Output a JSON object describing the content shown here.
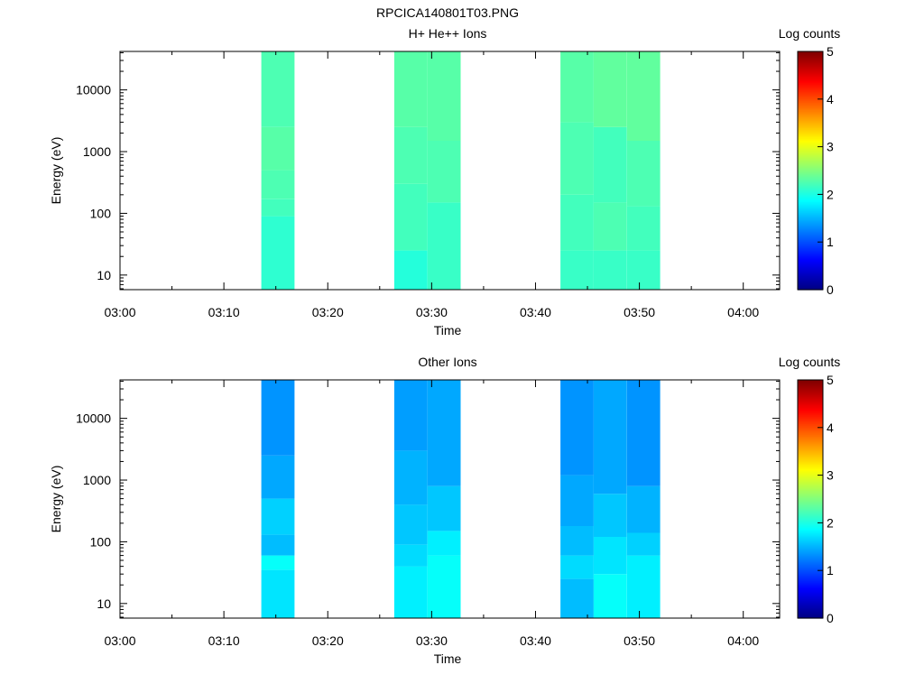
{
  "figure_title": "RPCICA140801T03.PNG",
  "colorbar": {
    "label": "Log counts",
    "ticks": [
      "0",
      "1",
      "2",
      "3",
      "4",
      "5"
    ],
    "range": [
      0,
      5
    ],
    "colormap": "jet"
  },
  "x_ticks": [
    "03:00",
    "03:10",
    "03:20",
    "03:30",
    "03:40",
    "03:50",
    "04:00"
  ],
  "x_tick_minutes": [
    0,
    10,
    20,
    30,
    40,
    50,
    60
  ],
  "x_minor_minutes": [
    5,
    15,
    25,
    35,
    45,
    55
  ],
  "xlim_minutes": [
    0,
    63.5
  ],
  "y_ticks": [
    "10",
    "100",
    "1000",
    "10000"
  ],
  "y_tick_values": [
    10,
    100,
    1000,
    10000
  ],
  "ylim": [
    5.8,
    42000
  ],
  "chart_data": [
    {
      "type": "heatmap",
      "title": "H+ He++ Ions",
      "xlabel": "Time",
      "ylabel": "Energy (eV)",
      "y_scale": "log",
      "x_unit": "minutes after 03:00",
      "color_scale": [
        0,
        5
      ],
      "columns": [
        {
          "x_range": [
            13.6,
            16.8
          ],
          "ranges": [
            [
              5.8,
              90,
              2.1
            ],
            [
              90,
              170,
              2.2
            ],
            [
              170,
              500,
              2.25
            ],
            [
              500,
              2500,
              2.3
            ],
            [
              2500,
              42000,
              2.25
            ]
          ]
        },
        {
          "x_range": [
            26.4,
            29.6
          ],
          "ranges": [
            [
              5.8,
              25,
              2.05
            ],
            [
              25,
              300,
              2.2
            ],
            [
              300,
              2500,
              2.25
            ],
            [
              2500,
              42000,
              2.3
            ]
          ]
        },
        {
          "x_range": [
            29.6,
            32.8
          ],
          "ranges": [
            [
              5.8,
              150,
              2.15
            ],
            [
              150,
              1500,
              2.25
            ],
            [
              1500,
              42000,
              2.3
            ]
          ]
        },
        {
          "x_range": [
            42.4,
            45.6
          ],
          "ranges": [
            [
              5.8,
              25,
              2.15
            ],
            [
              25,
              200,
              2.2
            ],
            [
              200,
              3000,
              2.25
            ],
            [
              3000,
              42000,
              2.3
            ]
          ]
        },
        {
          "x_range": [
            45.6,
            48.8
          ],
          "ranges": [
            [
              5.8,
              25,
              2.15
            ],
            [
              25,
              150,
              2.25
            ],
            [
              150,
              2500,
              2.2
            ],
            [
              2500,
              42000,
              2.35
            ]
          ]
        },
        {
          "x_range": [
            48.8,
            52.0
          ],
          "ranges": [
            [
              5.8,
              25,
              2.15
            ],
            [
              25,
              130,
              2.2
            ],
            [
              130,
              1500,
              2.25
            ],
            [
              1500,
              42000,
              2.35
            ]
          ]
        }
      ]
    },
    {
      "type": "heatmap",
      "title": "Other Ions",
      "xlabel": "Time",
      "ylabel": "Energy (eV)",
      "y_scale": "log",
      "x_unit": "minutes after 03:00",
      "color_scale": [
        0,
        5
      ],
      "columns": [
        {
          "x_range": [
            13.6,
            16.8
          ],
          "ranges": [
            [
              5.8,
              35,
              1.75
            ],
            [
              35,
              60,
              1.9
            ],
            [
              60,
              130,
              1.55
            ],
            [
              130,
              500,
              1.65
            ],
            [
              500,
              2500,
              1.45
            ],
            [
              2500,
              42000,
              1.35
            ]
          ]
        },
        {
          "x_range": [
            26.4,
            29.6
          ],
          "ranges": [
            [
              5.8,
              40,
              1.8
            ],
            [
              40,
              90,
              1.7
            ],
            [
              90,
              400,
              1.6
            ],
            [
              400,
              3000,
              1.5
            ],
            [
              3000,
              42000,
              1.4
            ]
          ]
        },
        {
          "x_range": [
            29.6,
            32.8
          ],
          "ranges": [
            [
              5.8,
              60,
              1.9
            ],
            [
              60,
              150,
              1.8
            ],
            [
              150,
              800,
              1.6
            ],
            [
              800,
              42000,
              1.45
            ]
          ]
        },
        {
          "x_range": [
            42.4,
            45.6
          ],
          "ranges": [
            [
              5.8,
              25,
              1.55
            ],
            [
              25,
              60,
              1.7
            ],
            [
              60,
              180,
              1.55
            ],
            [
              180,
              1200,
              1.45
            ],
            [
              1200,
              42000,
              1.35
            ]
          ]
        },
        {
          "x_range": [
            45.6,
            48.8
          ],
          "ranges": [
            [
              5.8,
              30,
              1.9
            ],
            [
              30,
              120,
              1.75
            ],
            [
              120,
              600,
              1.6
            ],
            [
              600,
              42000,
              1.45
            ]
          ]
        },
        {
          "x_range": [
            48.8,
            52.0
          ],
          "ranges": [
            [
              5.8,
              60,
              1.8
            ],
            [
              60,
              140,
              1.65
            ],
            [
              140,
              800,
              1.5
            ],
            [
              800,
              42000,
              1.35
            ]
          ]
        }
      ]
    }
  ]
}
